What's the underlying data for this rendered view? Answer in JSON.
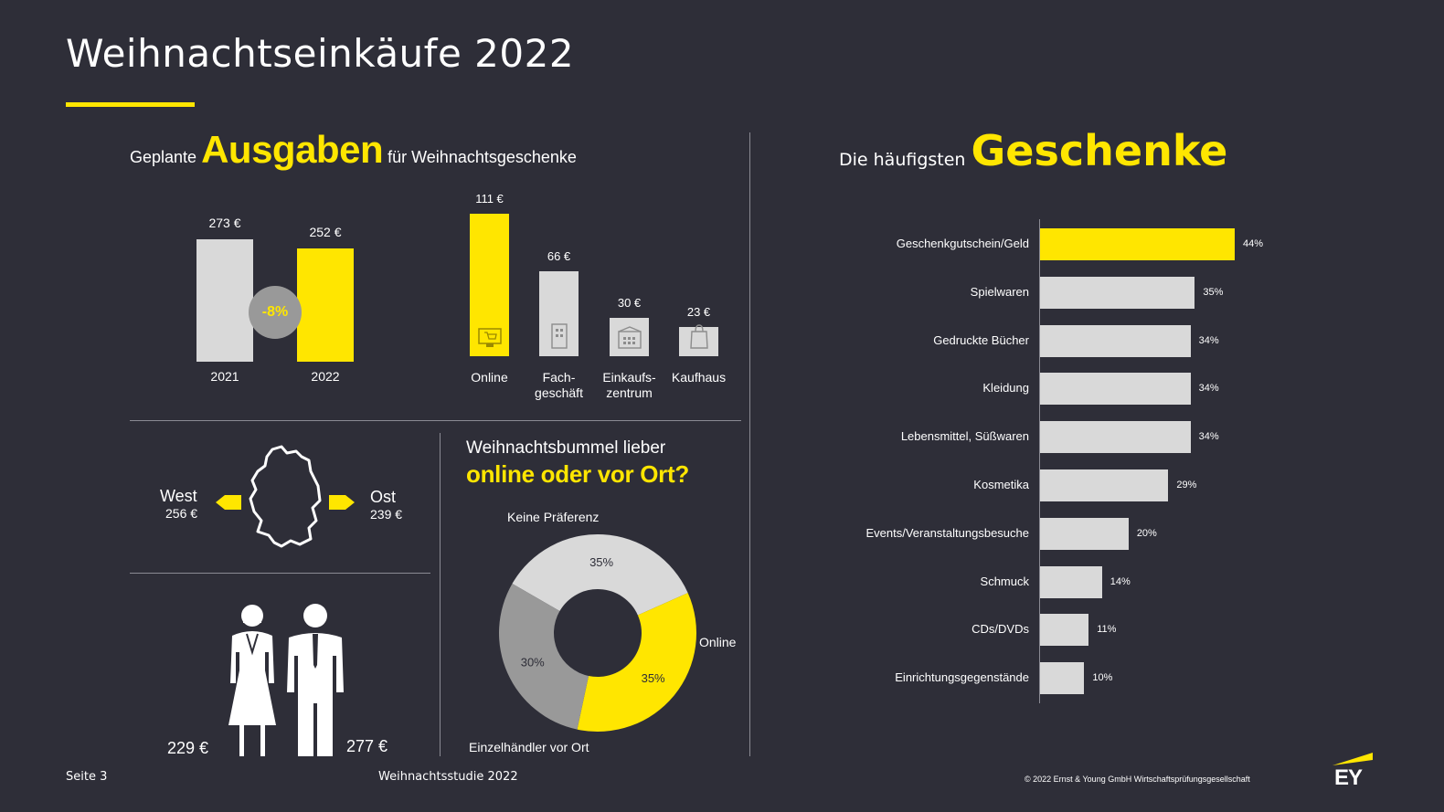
{
  "title": "Weihnachtseinkäufe 2022",
  "colors": {
    "background": "#2e2e38",
    "accent": "#ffe600",
    "neutral": "#d9d9d9",
    "mid_gray": "#999999"
  },
  "spending": {
    "heading_pre": "Geplante",
    "heading_big": "Ausgaben",
    "heading_post": "für Weihnachtsgeschenke",
    "change_badge": "-8%"
  },
  "region": {
    "west_label": "West",
    "west_value": "256 €",
    "east_label": "Ost",
    "east_value": "239 €",
    "icon": "germany-map-icon"
  },
  "gender": {
    "female_value": "229 €",
    "male_value": "277 €",
    "female_icon": "woman-icon",
    "male_icon": "man-icon"
  },
  "preference": {
    "heading_line1": "Weihnachtsbummel lieber",
    "heading_line2": "online oder vor Ort?"
  },
  "gifts": {
    "heading_pre": "Die häufigsten",
    "heading_big": "Geschenke"
  },
  "footer": {
    "page": "Seite 3",
    "study": "Weihnachtsstudie 2022",
    "copyright": "© 2022 Ernst & Young GmbH Wirtschaftsprüfungsgesellschaft",
    "logo": "EY"
  },
  "chart_data": [
    {
      "type": "bar",
      "categories": [
        "2021",
        "2022"
      ],
      "values": [
        273,
        252
      ],
      "value_labels": [
        "273 €",
        "252 €"
      ],
      "colors": [
        "#d9d9d9",
        "#ffe600"
      ]
    },
    {
      "type": "bar",
      "categories": [
        "Online",
        "Fach-\ngeschäft",
        "Einkaufs-\nzentrum",
        "Kaufhaus"
      ],
      "values": [
        111,
        66,
        30,
        23
      ],
      "value_labels": [
        "111 €",
        "66 €",
        "30 €",
        "23 €"
      ],
      "icons": [
        "monitor-cart-icon",
        "building-icon",
        "shopping-mall-icon",
        "shopping-bag-icon"
      ],
      "colors": [
        "#ffe600",
        "#d9d9d9",
        "#d9d9d9",
        "#d9d9d9"
      ]
    },
    {
      "type": "pie",
      "categories": [
        "Keine Präferenz",
        "Online",
        "Einzelhändler vor Ort"
      ],
      "values": [
        35,
        35,
        30
      ],
      "value_labels": [
        "35%",
        "35%",
        "30%"
      ],
      "colors": [
        "#d9d9d9",
        "#ffe600",
        "#999999"
      ]
    },
    {
      "type": "bar",
      "orientation": "horizontal",
      "categories": [
        "Geschenkgutschein/Geld",
        "Spielwaren",
        "Gedruckte Bücher",
        "Kleidung",
        "Lebensmittel, Süßwaren",
        "Kosmetika",
        "Events/Veranstaltungsbesuche",
        "Schmuck",
        "CDs/DVDs",
        "Einrichtungsgegenstände"
      ],
      "values": [
        44,
        35,
        34,
        34,
        34,
        29,
        20,
        14,
        11,
        10
      ],
      "value_labels": [
        "44%",
        "35%",
        "34%",
        "34%",
        "34%",
        "29%",
        "20%",
        "14%",
        "11%",
        "10%"
      ],
      "highlight": "Geschenkgutschein/Geld"
    }
  ]
}
